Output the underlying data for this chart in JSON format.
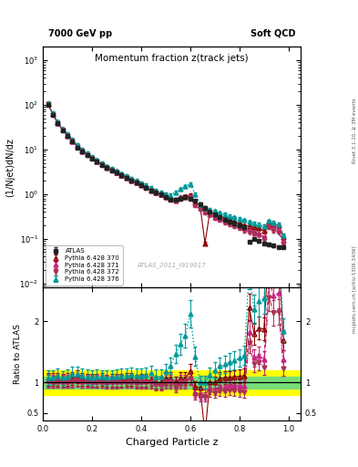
{
  "title_main": "Momentum fraction z(track jets)",
  "top_left_label": "7000 GeV pp",
  "top_right_label": "Soft QCD",
  "ylabel_main": "(1/Njet)dN/dz",
  "ylabel_ratio": "Ratio to ATLAS",
  "xlabel": "Charged Particle z",
  "watermark": "ATLAS_2011_I919017",
  "right_label1": "Rivet 3.1.10, ≥ 3M events",
  "right_label2": "mcplots.cern.ch [arXiv:1306.3436]",
  "ylim_main": [
    0.008,
    2000
  ],
  "ylim_ratio": [
    0.38,
    2.55
  ],
  "ratio_yticks": [
    0.5,
    1.0,
    2.0
  ],
  "ratio_yticklabels": [
    "0.5",
    "1",
    "2"
  ],
  "z_values": [
    0.02,
    0.04,
    0.06,
    0.08,
    0.1,
    0.12,
    0.14,
    0.16,
    0.18,
    0.2,
    0.22,
    0.24,
    0.26,
    0.28,
    0.3,
    0.32,
    0.34,
    0.36,
    0.38,
    0.4,
    0.42,
    0.44,
    0.46,
    0.48,
    0.5,
    0.52,
    0.54,
    0.56,
    0.58,
    0.6,
    0.62,
    0.64,
    0.66,
    0.68,
    0.7,
    0.72,
    0.74,
    0.76,
    0.78,
    0.8,
    0.82,
    0.84,
    0.86,
    0.88,
    0.9,
    0.92,
    0.94,
    0.96,
    0.98
  ],
  "atlas_y": [
    100,
    60,
    38,
    27,
    20,
    15,
    11,
    9,
    7.5,
    6.3,
    5.3,
    4.5,
    3.9,
    3.4,
    3.0,
    2.6,
    2.3,
    2.0,
    1.8,
    1.6,
    1.4,
    1.2,
    1.1,
    1.0,
    0.85,
    0.75,
    0.75,
    0.8,
    0.85,
    0.8,
    0.7,
    0.6,
    0.5,
    0.4,
    0.35,
    0.3,
    0.27,
    0.24,
    0.22,
    0.2,
    0.18,
    0.085,
    0.1,
    0.09,
    0.08,
    0.075,
    0.07,
    0.065,
    0.065
  ],
  "atlas_err_rel": 0.07,
  "p370_y": [
    105,
    63,
    40,
    28,
    21,
    16,
    12,
    9.5,
    7.8,
    6.5,
    5.5,
    4.7,
    4.0,
    3.5,
    3.1,
    2.7,
    2.4,
    2.1,
    1.85,
    1.65,
    1.45,
    1.25,
    1.1,
    1.0,
    0.9,
    0.8,
    0.75,
    0.85,
    0.9,
    0.95,
    0.65,
    0.55,
    0.08,
    0.4,
    0.35,
    0.32,
    0.29,
    0.26,
    0.24,
    0.22,
    0.2,
    0.19,
    0.18,
    0.17,
    0.15,
    0.24,
    0.21,
    0.2,
    0.11
  ],
  "p371_y": [
    103,
    61,
    39,
    27.5,
    20.5,
    15.5,
    11.5,
    9.2,
    7.7,
    6.4,
    5.4,
    4.6,
    3.95,
    3.45,
    3.05,
    2.65,
    2.35,
    2.05,
    1.82,
    1.62,
    1.42,
    1.22,
    1.08,
    0.98,
    0.87,
    0.77,
    0.72,
    0.82,
    0.87,
    0.87,
    0.58,
    0.48,
    0.4,
    0.36,
    0.31,
    0.28,
    0.25,
    0.23,
    0.21,
    0.19,
    0.17,
    0.155,
    0.14,
    0.13,
    0.11,
    0.2,
    0.17,
    0.16,
    0.09
  ],
  "p372_y": [
    102,
    60.5,
    38.5,
    27.2,
    20.3,
    15.3,
    11.3,
    9.1,
    7.6,
    6.35,
    5.35,
    4.55,
    3.9,
    3.4,
    3.0,
    2.62,
    2.32,
    2.02,
    1.8,
    1.6,
    1.4,
    1.2,
    1.06,
    0.96,
    0.85,
    0.75,
    0.7,
    0.8,
    0.85,
    0.85,
    0.56,
    0.46,
    0.38,
    0.34,
    0.29,
    0.26,
    0.23,
    0.21,
    0.19,
    0.17,
    0.15,
    0.14,
    0.13,
    0.12,
    0.1,
    0.18,
    0.15,
    0.14,
    0.08
  ],
  "p376_y": [
    108,
    65,
    42,
    29,
    22,
    17,
    12.5,
    10,
    8.2,
    6.8,
    5.8,
    4.9,
    4.2,
    3.7,
    3.3,
    2.9,
    2.55,
    2.25,
    2.0,
    1.78,
    1.58,
    1.38,
    1.2,
    1.1,
    1.0,
    0.95,
    1.1,
    1.3,
    1.5,
    1.7,
    1.0,
    0.6,
    0.5,
    0.45,
    0.42,
    0.38,
    0.35,
    0.32,
    0.3,
    0.28,
    0.26,
    0.24,
    0.22,
    0.21,
    0.19,
    0.25,
    0.23,
    0.21,
    0.12
  ],
  "p370_err_rel": 0.07,
  "p371_err_rel": 0.07,
  "p372_err_rel": 0.07,
  "p376_err_rel": 0.08,
  "color_atlas": "#222222",
  "color_370": "#8B0000",
  "color_371": "#CC2288",
  "color_372": "#AA3355",
  "color_376": "#009999",
  "band_yellow": 0.2,
  "band_green": 0.1,
  "fig_bg": "#ffffff",
  "xlim": [
    0.0,
    1.05
  ]
}
